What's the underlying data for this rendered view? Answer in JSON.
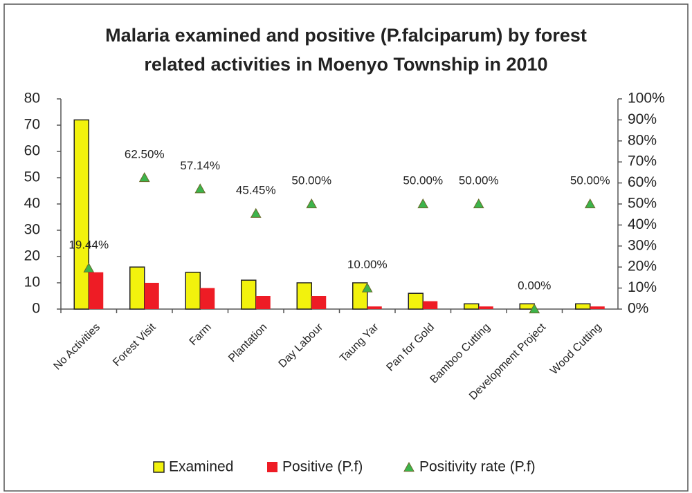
{
  "chart_data": {
    "type": "bar",
    "title": "Malaria examined and positive (P.falciparum) by forest related activities in Moenyo Township in 2010",
    "categories": [
      "No Activities",
      "Forest Visit",
      "Farm",
      "Plantation",
      "Day Labour",
      "Taung Yar",
      "Pan for Gold",
      "Bamboo Cutting",
      "Development Project",
      "Wood Cutting"
    ],
    "series": [
      {
        "name": "Examined",
        "type": "bar",
        "color": "#f2f20d",
        "values": [
          72,
          16,
          14,
          11,
          10,
          10,
          6,
          2,
          2,
          2
        ]
      },
      {
        "name": "Positive (P.f)",
        "type": "bar",
        "color": "#ee1c25",
        "values": [
          14,
          10,
          8,
          5,
          5,
          1,
          3,
          1,
          0,
          1
        ]
      },
      {
        "name": "Positivity rate (P.f)",
        "type": "scatter",
        "axis": "y2",
        "color": "#3cb44b",
        "values": [
          19.44,
          62.5,
          57.14,
          45.45,
          50,
          10,
          50,
          50,
          0,
          50
        ],
        "value_labels": [
          "19.44%",
          "62.50%",
          "57.14%",
          "45.45%",
          "50.00%",
          "10.00%",
          "50.00%",
          "50.00%",
          "0.00%",
          "50.00%"
        ]
      }
    ],
    "ylim": [
      0,
      80
    ],
    "yticks": [
      0,
      10,
      20,
      30,
      40,
      50,
      60,
      70,
      80
    ],
    "y2lim": [
      0,
      100
    ],
    "y2ticks": [
      {
        "value": 0,
        "label": "0%"
      },
      {
        "value": 10,
        "label": "10%"
      },
      {
        "value": 20,
        "label": "20%"
      },
      {
        "value": 30,
        "label": "30%"
      },
      {
        "value": 40,
        "label": "40%"
      },
      {
        "value": 50,
        "label": "50%"
      },
      {
        "value": 60,
        "label": "60%"
      },
      {
        "value": 70,
        "label": "70%"
      },
      {
        "value": 80,
        "label": "80%"
      },
      {
        "value": 90,
        "label": "90%"
      },
      {
        "value": 100,
        "label": "100%"
      }
    ],
    "legend": "bottom"
  }
}
